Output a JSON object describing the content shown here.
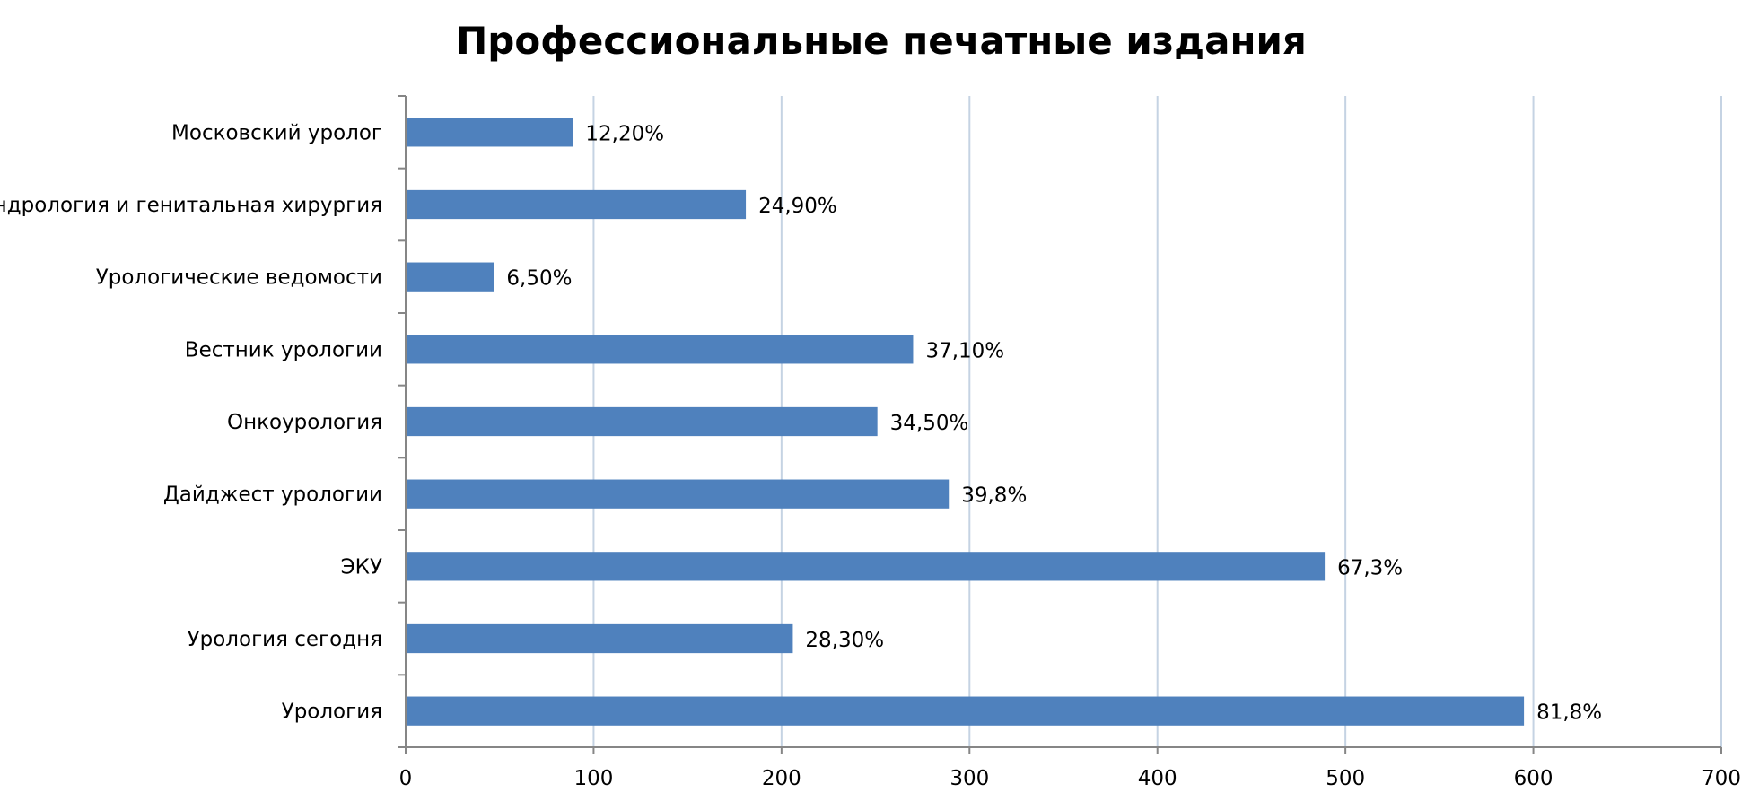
{
  "chart_data": {
    "type": "bar",
    "orientation": "horizontal",
    "title": "Профессиональные печатные издания",
    "xlabel": "",
    "ylabel": "",
    "xlim": [
      0,
      700
    ],
    "x_ticks": [
      0,
      100,
      200,
      300,
      400,
      500,
      600,
      700
    ],
    "grid": "vertical",
    "legend": "none",
    "bar_color": "#4f81bd",
    "categories": [
      "Московский уролог",
      "Андрология и генитальная хирургия",
      "Урологические ведомости",
      "Вестник урологии",
      "Онкоурология",
      "Дайджест урологии",
      "ЭКУ",
      "Урология сегодня",
      "Урология"
    ],
    "values": [
      89,
      181,
      47,
      270,
      251,
      289,
      489,
      206,
      595
    ],
    "data_labels": [
      "12,20%",
      "24,90%",
      "6,50%",
      "37,10%",
      "34,50%",
      "39,8%",
      "67,3%",
      "28,30%",
      "81,8%"
    ]
  }
}
